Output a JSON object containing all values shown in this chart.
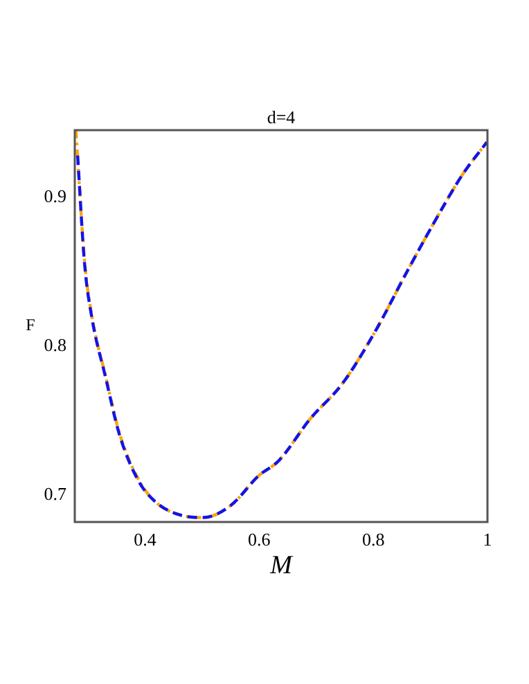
{
  "chart_data": {
    "type": "line",
    "title": "d=4",
    "xlabel": "M",
    "ylabel": "F",
    "xlim": [
      0.277,
      1.0
    ],
    "ylim": [
      0.682,
      0.945
    ],
    "xticks": [
      0.4,
      0.6,
      0.8,
      {
        "value": 1,
        "label": "1"
      }
    ],
    "yticks": [
      0.7,
      0.8,
      0.9
    ],
    "grid": false,
    "legend": false,
    "marker": "none",
    "series": [
      {
        "color": "#1414e6",
        "line_style": "dashed",
        "x": [
          0.282,
          0.294,
          0.307,
          0.331,
          0.355,
          0.388,
          0.42,
          0.469,
          0.502,
          0.55,
          0.599,
          0.634,
          0.689,
          0.746,
          0.802,
          0.859,
          0.908,
          0.956,
          0.999
        ],
        "values": [
          0.928,
          0.856,
          0.819,
          0.779,
          0.741,
          0.71,
          0.695,
          0.686,
          0.685,
          0.693,
          0.713,
          0.723,
          0.751,
          0.775,
          0.809,
          0.85,
          0.884,
          0.915,
          0.937
        ]
      },
      {
        "color": "#ffa500",
        "line_style": "dotted",
        "x": [
          0.279,
          0.294,
          0.307,
          0.331,
          0.355,
          0.388,
          0.42,
          0.469,
          0.502,
          0.55,
          0.599,
          0.634,
          0.689,
          0.746,
          0.802,
          0.859,
          0.908,
          0.956,
          0.999
        ],
        "values": [
          0.945,
          0.858,
          0.82,
          0.78,
          0.742,
          0.711,
          0.695,
          0.686,
          0.685,
          0.693,
          0.713,
          0.723,
          0.751,
          0.775,
          0.809,
          0.85,
          0.884,
          0.915,
          0.937
        ]
      }
    ]
  }
}
